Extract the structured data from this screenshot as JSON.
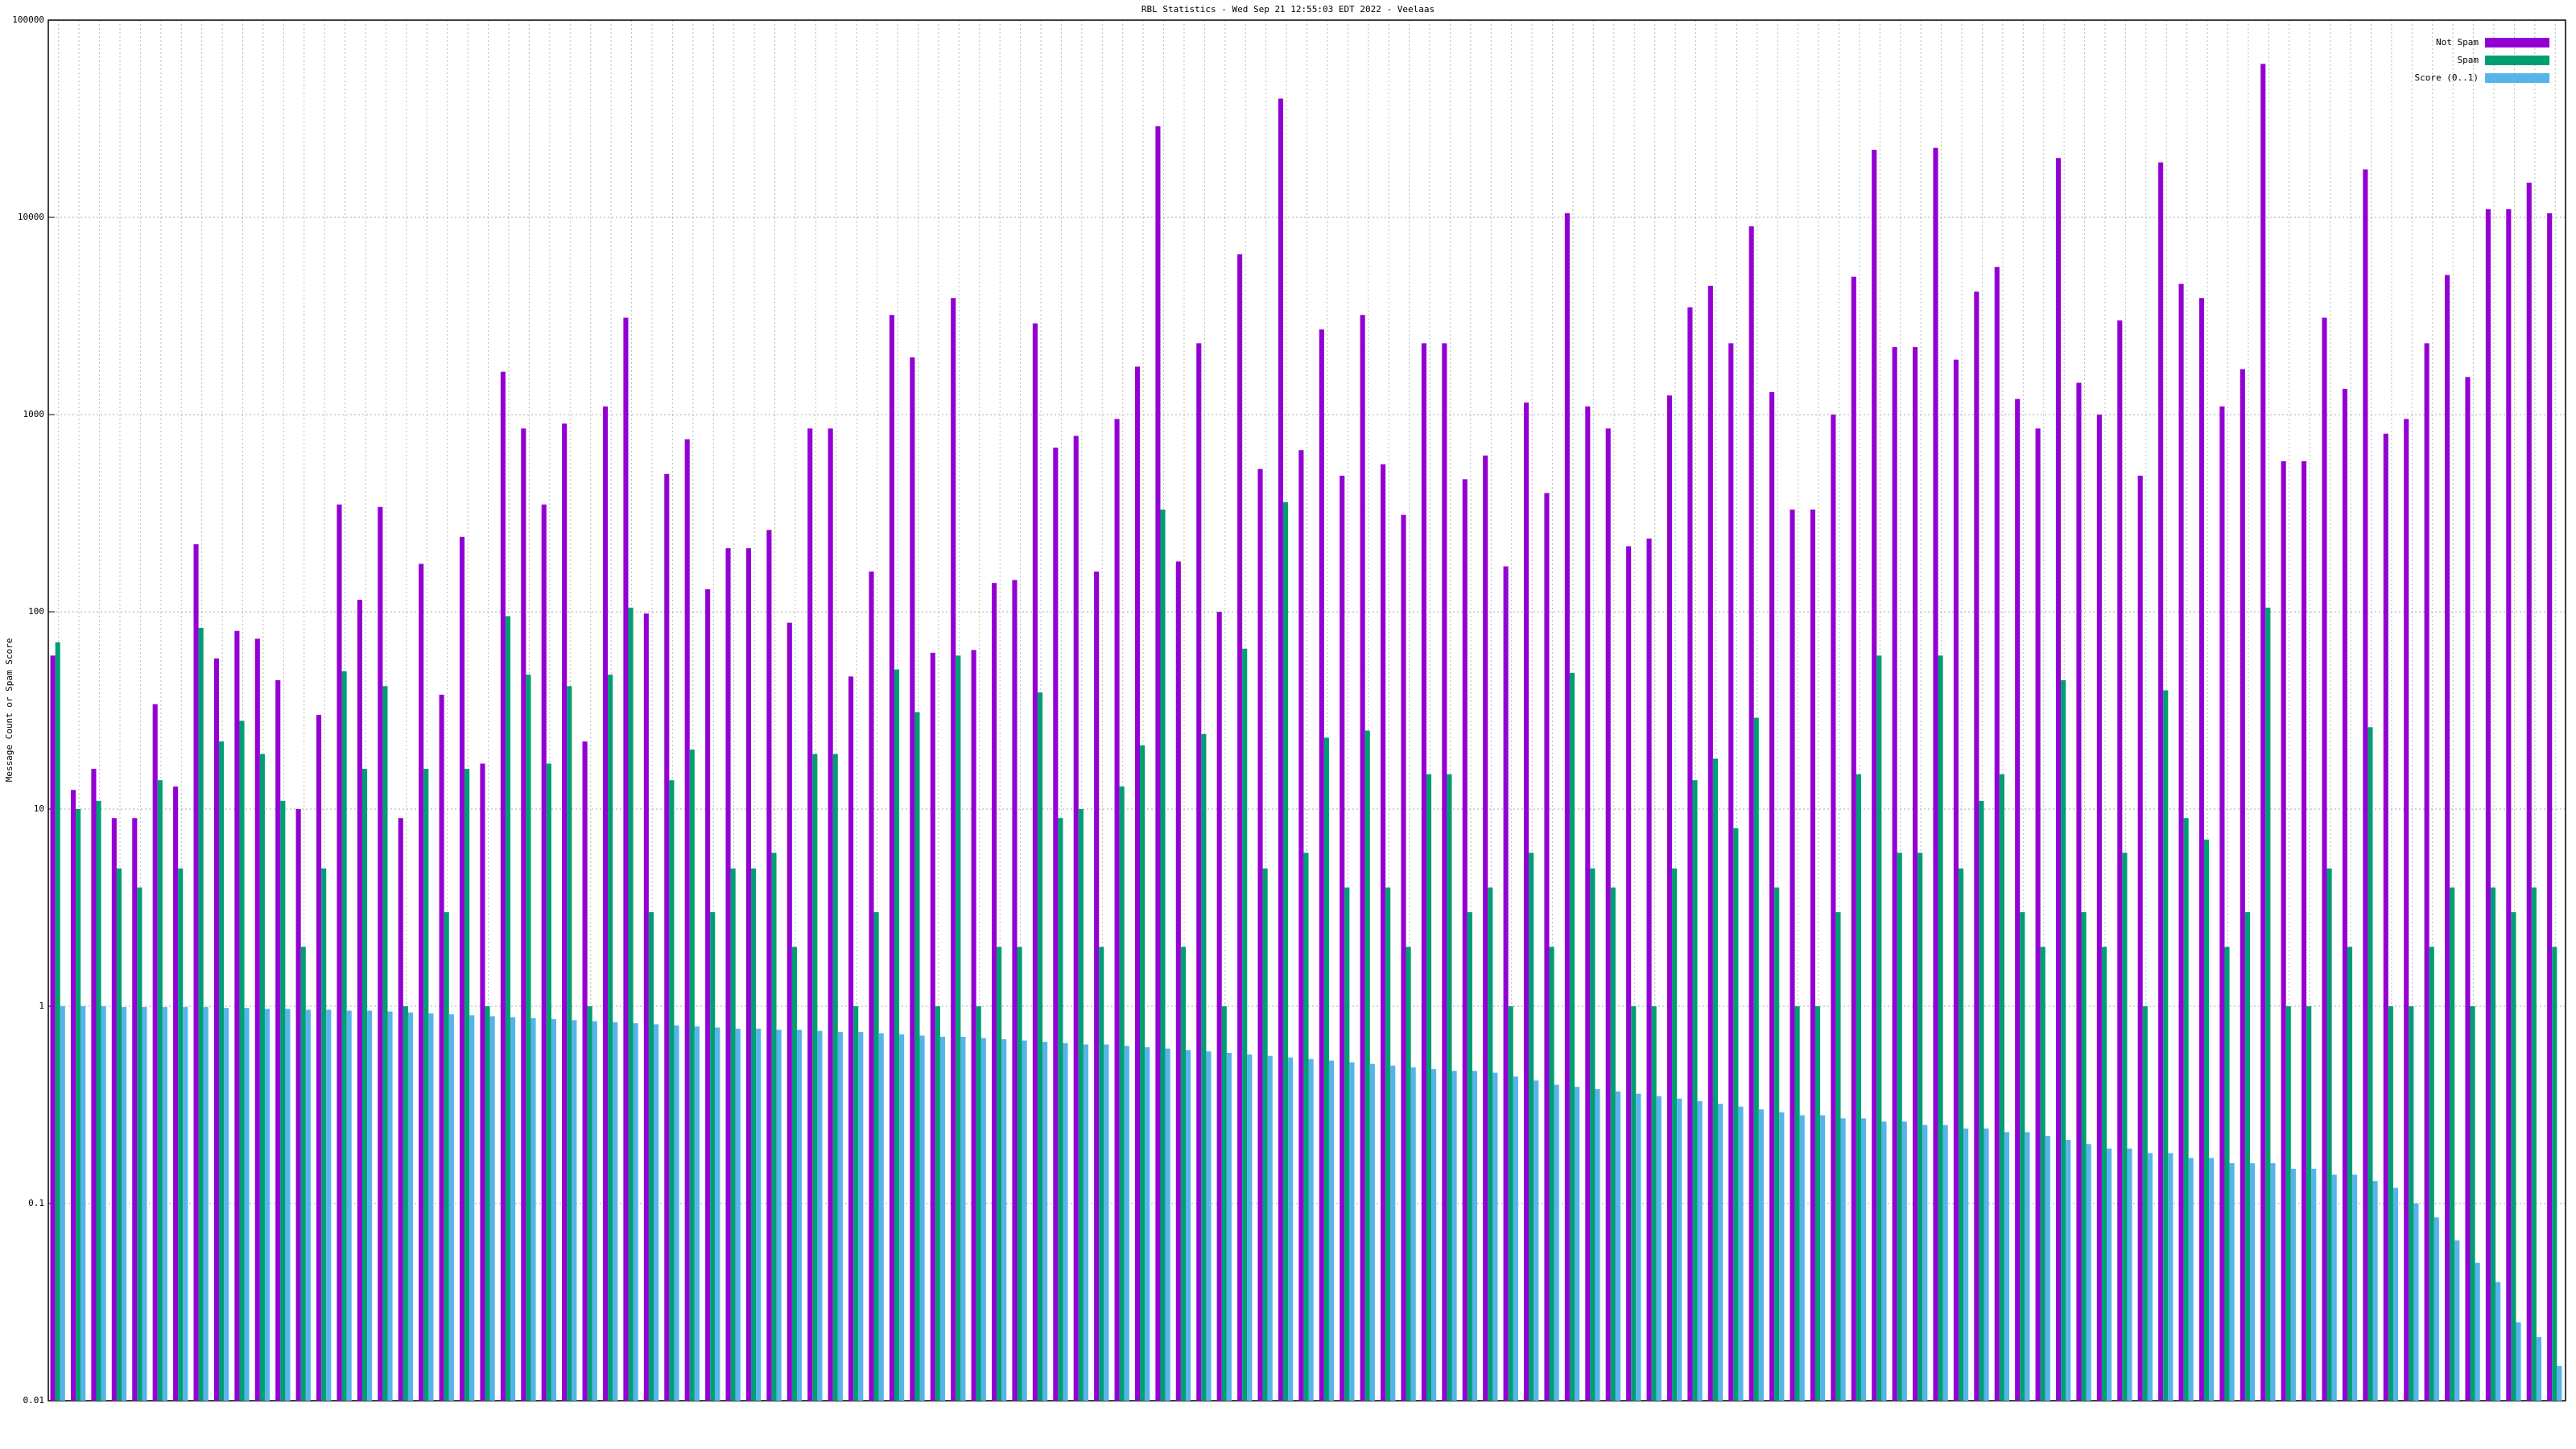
{
  "chart_data": {
    "type": "bar",
    "title": "RBL Statistics - Wed Sep 21 12:55:03 EDT 2022 - Veelaas",
    "y_label": "Message Count or Spam Score",
    "log_scale": true,
    "grid": true,
    "legend": "top-right",
    "ylim": [
      0.01,
      100000
    ],
    "yticks": [
      0.01,
      0.1,
      1,
      10,
      100,
      1000,
      10000,
      100000
    ],
    "categories": [
      null,
      null,
      null,
      null,
      null,
      null,
      null,
      null,
      null,
      null,
      null,
      null,
      null,
      null,
      null,
      null,
      null,
      null,
      null,
      null,
      null,
      null,
      null,
      null,
      null,
      null,
      null,
      null,
      null,
      null,
      null,
      null,
      null,
      null,
      null,
      null,
      null,
      null,
      null,
      null,
      null,
      null,
      null,
      null,
      null,
      null,
      null,
      null,
      null,
      null,
      null,
      null,
      null,
      null,
      null,
      null,
      null,
      null,
      null,
      null,
      null,
      null,
      null,
      null,
      null,
      null,
      null,
      null,
      null,
      null,
      null,
      null,
      null,
      null,
      null,
      null,
      null,
      null,
      null,
      null,
      null,
      null,
      null,
      null,
      null,
      null,
      null,
      null,
      null,
      null,
      null,
      null,
      null,
      null,
      null,
      null,
      null,
      null,
      null,
      null,
      null,
      null,
      null,
      null,
      null,
      null,
      null,
      null,
      null,
      null,
      null,
      null,
      null,
      null,
      null,
      null,
      null,
      null,
      null,
      null,
      null,
      null,
      null
    ],
    "series": [
      {
        "name": "Not Spam",
        "color": "#9400d3",
        "values": [
          60,
          12.5,
          16,
          9,
          9,
          34,
          13,
          220,
          58,
          80,
          73,
          45,
          10,
          30,
          350,
          115,
          340,
          9,
          175,
          38,
          240,
          17,
          1650,
          850,
          350,
          900,
          22,
          1100,
          3100,
          98,
          500,
          750,
          130,
          210,
          210,
          260,
          88,
          850,
          850,
          47,
          160,
          3200,
          1950,
          62,
          3900,
          64,
          140,
          145,
          2900,
          680,
          780,
          160,
          950,
          1750,
          29000,
          180,
          2300,
          100,
          6500,
          530,
          40000,
          660,
          2700,
          490,
          3200,
          560,
          310,
          2300,
          2300,
          470,
          620,
          170,
          1150,
          400,
          10500,
          1100,
          850,
          215,
          235,
          1250,
          3500,
          4500,
          2300,
          9000,
          1300,
          330,
          330,
          1000,
          5000,
          22000,
          2200,
          2200,
          22500,
          1900,
          4200,
          5600,
          1200,
          850,
          20000,
          1450,
          1000,
          3000,
          490,
          19000,
          4600,
          3900,
          1100,
          1700,
          60000,
          580,
          580,
          3100,
          1350,
          17500,
          800,
          950,
          2300,
          5100,
          1550,
          11000,
          11000,
          15000,
          10500
        ]
      },
      {
        "name": "Spam",
        "color": "#009e73",
        "values": [
          70,
          10,
          11,
          5,
          4,
          14,
          5,
          83,
          22,
          28,
          19,
          11,
          2,
          5,
          50,
          16,
          42,
          1,
          16,
          3,
          16,
          1,
          95,
          48,
          17,
          42,
          1,
          48,
          105,
          3,
          14,
          20,
          3,
          5,
          5,
          6,
          2,
          19,
          19,
          1,
          3,
          51,
          31,
          1,
          60,
          1,
          2,
          2,
          39,
          9,
          10,
          2,
          13,
          21,
          330,
          2,
          24,
          1,
          65,
          5,
          360,
          6,
          23,
          4,
          25,
          4,
          2,
          15,
          15,
          3,
          4,
          1,
          6,
          2,
          49,
          5,
          4,
          1,
          1,
          5,
          14,
          18,
          8,
          29,
          4,
          1,
          1,
          3,
          15,
          60,
          6,
          6,
          60,
          5,
          11,
          15,
          3,
          2,
          45,
          3,
          2,
          6,
          1,
          40,
          9,
          7,
          2,
          3,
          105,
          1,
          1,
          5,
          2,
          26,
          1,
          1,
          2,
          4,
          1,
          4,
          3,
          4,
          2
        ]
      },
      {
        "name": "Score (0..1)",
        "color": "#56b4e9",
        "values": [
          1,
          1,
          1,
          0.99,
          0.99,
          0.99,
          0.99,
          0.99,
          0.98,
          0.98,
          0.97,
          0.97,
          0.96,
          0.96,
          0.95,
          0.95,
          0.94,
          0.93,
          0.92,
          0.91,
          0.9,
          0.89,
          0.88,
          0.87,
          0.86,
          0.85,
          0.84,
          0.83,
          0.82,
          0.81,
          0.8,
          0.79,
          0.78,
          0.77,
          0.77,
          0.76,
          0.76,
          0.75,
          0.74,
          0.74,
          0.73,
          0.72,
          0.71,
          0.7,
          0.7,
          0.69,
          0.68,
          0.67,
          0.66,
          0.65,
          0.64,
          0.64,
          0.63,
          0.62,
          0.61,
          0.6,
          0.59,
          0.58,
          0.57,
          0.56,
          0.55,
          0.54,
          0.53,
          0.52,
          0.51,
          0.5,
          0.49,
          0.48,
          0.47,
          0.47,
          0.46,
          0.44,
          0.42,
          0.4,
          0.39,
          0.38,
          0.37,
          0.36,
          0.35,
          0.34,
          0.33,
          0.32,
          0.31,
          0.3,
          0.29,
          0.28,
          0.28,
          0.27,
          0.27,
          0.26,
          0.26,
          0.25,
          0.25,
          0.24,
          0.24,
          0.23,
          0.23,
          0.22,
          0.21,
          0.2,
          0.19,
          0.19,
          0.18,
          0.18,
          0.17,
          0.17,
          0.16,
          0.16,
          0.16,
          0.15,
          0.15,
          0.14,
          0.14,
          0.13,
          0.12,
          0.1,
          0.085,
          0.065,
          0.05,
          0.04,
          0.025,
          0.021,
          0.015
        ]
      }
    ]
  }
}
